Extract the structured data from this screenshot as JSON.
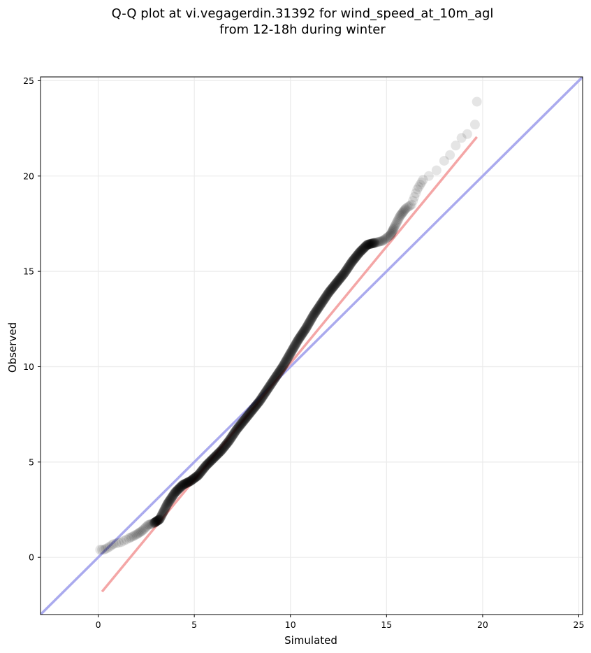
{
  "chart_data": {
    "type": "scatter",
    "title_line1": "Q-Q plot at vi.vegagerdin.31392 for wind_speed_at_10m_agl",
    "title_line2": "from 12-18h during winter",
    "xlabel": "Simulated",
    "ylabel": "Observed",
    "xlim": [
      -3.0,
      25.2
    ],
    "ylim": [
      -3.0,
      25.2
    ],
    "xticks": [
      "0",
      "5",
      "10",
      "15",
      "20",
      "25"
    ],
    "yticks": [
      "0",
      "5",
      "10",
      "15",
      "20",
      "25"
    ],
    "grid": true,
    "colors": {
      "identity_line": "#aaaaee",
      "fit_line": "#f4a6a6",
      "points": "#000000"
    },
    "identity_line": {
      "x": [
        -3.0,
        25.2
      ],
      "y": [
        -3.0,
        25.2
      ]
    },
    "fit_line": {
      "x": [
        0.2,
        19.7
      ],
      "y": [
        -1.8,
        22.05
      ]
    },
    "quantiles": {
      "x": [
        0.1,
        0.3,
        0.5,
        0.8,
        1.2,
        1.6,
        2.0,
        2.3,
        2.6,
        2.9,
        3.2,
        3.6,
        4.0,
        4.4,
        4.8,
        5.2,
        5.6,
        6.0,
        6.4,
        6.8,
        7.2,
        7.6,
        8.0,
        8.4,
        8.8,
        9.2,
        9.6,
        10.0,
        10.4,
        10.8,
        11.2,
        11.6,
        12.0,
        12.4,
        12.8,
        13.2,
        13.6,
        14.0,
        14.4,
        14.8,
        15.2,
        15.4,
        15.7,
        16.0,
        16.3,
        16.6,
        16.9,
        17.2,
        17.6,
        18.0,
        18.3,
        18.6,
        18.9,
        19.2,
        19.6,
        19.7
      ],
      "y": [
        0.4,
        0.4,
        0.5,
        0.7,
        0.8,
        1.0,
        1.2,
        1.4,
        1.7,
        1.8,
        2.0,
        2.8,
        3.4,
        3.8,
        4.0,
        4.3,
        4.8,
        5.2,
        5.6,
        6.1,
        6.7,
        7.2,
        7.7,
        8.2,
        8.8,
        9.4,
        10.0,
        10.7,
        11.4,
        12.0,
        12.7,
        13.3,
        13.9,
        14.4,
        14.9,
        15.5,
        16.0,
        16.4,
        16.5,
        16.6,
        16.9,
        17.3,
        17.9,
        18.3,
        18.5,
        19.3,
        19.8,
        20.0,
        20.3,
        20.8,
        21.1,
        21.6,
        22.0,
        22.2,
        22.7,
        23.9
      ]
    }
  }
}
